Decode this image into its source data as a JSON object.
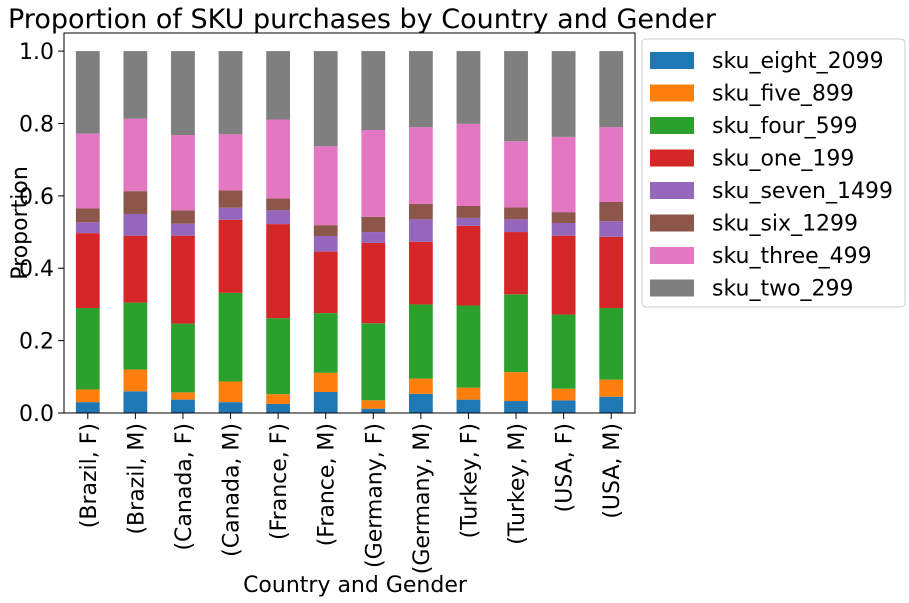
{
  "chart_data": {
    "type": "bar",
    "stacked": true,
    "title": "Proportion of SKU purchases by Country and Gender",
    "xlabel": "Country and Gender",
    "ylabel": "Proportion",
    "ylim": [
      0,
      1.05
    ],
    "yticks": [
      "0.0",
      "0.2",
      "0.4",
      "0.6",
      "0.8",
      "1.0"
    ],
    "grid": false,
    "legend_position": "outside-right",
    "categories": [
      "(Brazil, F)",
      "(Brazil, M)",
      "(Canada, F)",
      "(Canada, M)",
      "(France, F)",
      "(France, M)",
      "(Germany, F)",
      "(Germany, M)",
      "(Turkey, F)",
      "(Turkey, M)",
      "(USA, F)",
      "(USA, M)"
    ],
    "series": [
      {
        "name": "sku_eight_2099",
        "color": "#1f77b4",
        "values": [
          0.03,
          0.06,
          0.037,
          0.03,
          0.025,
          0.058,
          0.012,
          0.053,
          0.037,
          0.033,
          0.035,
          0.045
        ]
      },
      {
        "name": "sku_five_899",
        "color": "#ff7f0e",
        "values": [
          0.035,
          0.06,
          0.02,
          0.057,
          0.027,
          0.053,
          0.023,
          0.042,
          0.033,
          0.08,
          0.032,
          0.047
        ]
      },
      {
        "name": "sku_four_599",
        "color": "#2ca02c",
        "values": [
          0.225,
          0.185,
          0.19,
          0.245,
          0.21,
          0.165,
          0.213,
          0.205,
          0.227,
          0.215,
          0.205,
          0.198
        ]
      },
      {
        "name": "sku_one_199",
        "color": "#d62728",
        "values": [
          0.207,
          0.185,
          0.243,
          0.202,
          0.26,
          0.17,
          0.222,
          0.173,
          0.22,
          0.172,
          0.218,
          0.197
        ]
      },
      {
        "name": "sku_seven_1499",
        "color": "#9467bd",
        "values": [
          0.03,
          0.06,
          0.033,
          0.033,
          0.038,
          0.043,
          0.03,
          0.062,
          0.022,
          0.035,
          0.035,
          0.043
        ]
      },
      {
        "name": "sku_six_1299",
        "color": "#8c564b",
        "values": [
          0.038,
          0.063,
          0.037,
          0.048,
          0.033,
          0.03,
          0.042,
          0.043,
          0.033,
          0.033,
          0.03,
          0.053
        ]
      },
      {
        "name": "sku_three_499",
        "color": "#e377c2",
        "values": [
          0.207,
          0.2,
          0.208,
          0.155,
          0.218,
          0.218,
          0.24,
          0.212,
          0.227,
          0.183,
          0.208,
          0.207
        ]
      },
      {
        "name": "sku_two_299",
        "color": "#7f7f7f",
        "values": [
          0.228,
          0.187,
          0.232,
          0.23,
          0.189,
          0.263,
          0.218,
          0.21,
          0.201,
          0.249,
          0.237,
          0.21
        ]
      }
    ]
  }
}
